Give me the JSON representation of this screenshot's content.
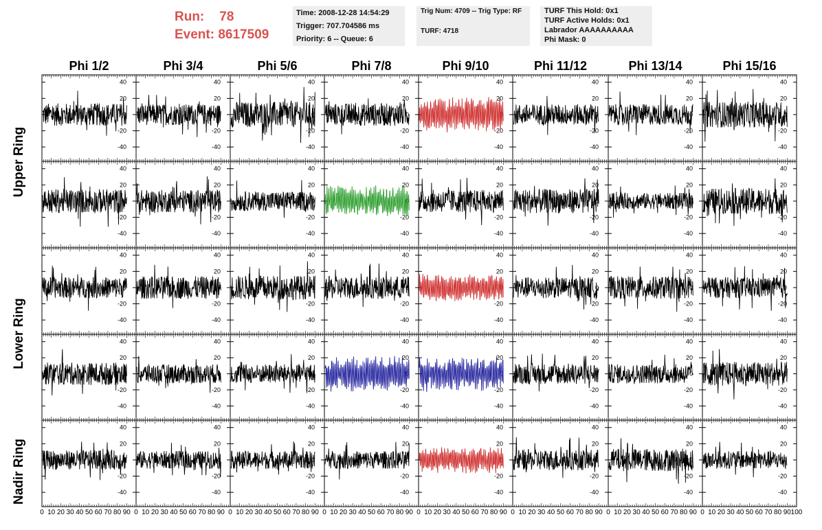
{
  "run_info": {
    "run_label": "Run:",
    "run_value": "78",
    "event_label": "Event:",
    "event_value": "8617509"
  },
  "time_box": {
    "time": "Time: 2008-12-28 14:54:29",
    "trigger": "Trigger: 707.704586 ms",
    "priority": "Priority: 6 -- Queue: 6"
  },
  "trig_box": {
    "trig": "Trig Num: 4709 -- Trig Type: RF",
    "turf": "TURF: 4718"
  },
  "turf_box": {
    "this_hold": "TURF This Hold: 0x1",
    "active_holds": "TURF Active Holds: 0x1",
    "labrador": "Labrador AAAAAAAAAA",
    "phi_mask": "Phi Mask: 0"
  },
  "phi_headers": [
    "Phi 1/2",
    "Phi 3/4",
    "Phi 5/6",
    "Phi 7/8",
    "Phi 9/10",
    "Phi 11/12",
    "Phi 13/14",
    "Phi 15/16"
  ],
  "ring_labels": {
    "upper": "Upper Ring",
    "lower": "Lower Ring",
    "nadir": "Nadir Ring"
  },
  "colors": {
    "run_text": "#d9534f",
    "trace_default": "#000000",
    "trace_red": "#cc2222",
    "trace_green": "#229922",
    "trace_blue": "#1a1a9a",
    "info_box_bg": "#eeeeee"
  },
  "chart_data": {
    "type": "line",
    "rows": 5,
    "cols": 8,
    "xlim": [
      0,
      100
    ],
    "ylim": [
      -50,
      50
    ],
    "y_ticks": [
      "40",
      "20",
      "0",
      "-20",
      "-40"
    ],
    "x_tick_labels": [
      "0",
      "10",
      "20",
      "30",
      "40",
      "50",
      "60",
      "70",
      "80",
      "90",
      "100"
    ],
    "panel_colors": [
      [
        "black",
        "black",
        "black",
        "black",
        "red",
        "black",
        "black",
        "black"
      ],
      [
        "black",
        "black",
        "black",
        "green",
        "black",
        "black",
        "black",
        "black"
      ],
      [
        "black",
        "black",
        "black",
        "black",
        "red",
        "black",
        "black",
        "black"
      ],
      [
        "black",
        "black",
        "black",
        "blue",
        "blue",
        "black",
        "black",
        "black"
      ],
      [
        "black",
        "black",
        "black",
        "black",
        "red",
        "black",
        "black",
        "black"
      ]
    ],
    "panel_amplitude": [
      [
        14,
        13,
        16,
        14,
        18,
        13,
        13,
        16
      ],
      [
        15,
        14,
        12,
        16,
        14,
        15,
        10,
        16
      ],
      [
        13,
        14,
        15,
        14,
        14,
        13,
        14,
        13
      ],
      [
        14,
        12,
        12,
        18,
        18,
        13,
        12,
        15
      ],
      [
        12,
        11,
        11,
        11,
        14,
        13,
        14,
        11
      ]
    ]
  }
}
